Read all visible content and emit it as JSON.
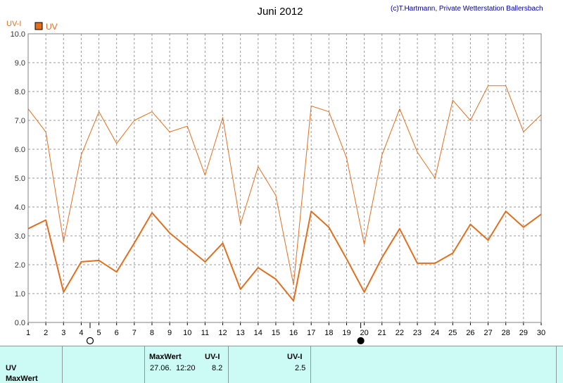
{
  "chart_data": {
    "type": "line",
    "title": "Juni 2012",
    "credit": "(c)T.Hartmann, Private Wetterstation Ballersbach",
    "ylabel": "UV-I",
    "legend": "UV",
    "legend_color": "#e07020",
    "ylim": [
      0,
      10
    ],
    "yticks": [
      "0.0",
      "1.0",
      "2.0",
      "3.0",
      "4.0",
      "5.0",
      "6.0",
      "7.0",
      "8.0",
      "9.0",
      "10.0"
    ],
    "xlim": [
      1,
      30
    ],
    "x": [
      1,
      2,
      3,
      4,
      5,
      6,
      7,
      8,
      9,
      10,
      11,
      12,
      13,
      14,
      15,
      16,
      17,
      18,
      19,
      20,
      21,
      22,
      23,
      24,
      25,
      26,
      27,
      28,
      29,
      30
    ],
    "grid": true,
    "series": [
      {
        "values": [
          7.4,
          6.6,
          2.8,
          5.8,
          7.3,
          6.2,
          7.0,
          7.3,
          6.6,
          6.8,
          5.1,
          7.1,
          3.4,
          5.4,
          4.4,
          1.3,
          7.5,
          7.3,
          5.7,
          2.7,
          5.8,
          7.4,
          5.9,
          5.0,
          7.7,
          7.0,
          8.2,
          8.2,
          6.6,
          7.2
        ]
      },
      {
        "values": [
          3.25,
          3.55,
          1.05,
          2.1,
          2.15,
          1.75,
          2.75,
          3.8,
          3.1,
          2.6,
          2.1,
          2.75,
          1.15,
          1.9,
          1.5,
          0.75,
          3.85,
          3.3,
          2.2,
          1.05,
          2.25,
          3.25,
          2.05,
          2.05,
          2.4,
          3.4,
          2.85,
          3.85,
          3.3,
          3.75
        ]
      }
    ],
    "moon_phases": [
      {
        "day": 4.5,
        "phase": "full"
      },
      {
        "day": 19.8,
        "phase": "new"
      }
    ]
  },
  "info": {
    "row_label": "UV",
    "row_label2": "MaxWert",
    "max_header": "MaxWert",
    "unit_header": "UV-I",
    "max_date": "27.06.",
    "max_time": "12:20",
    "max_value": "8.2",
    "avg_header": "UV-I",
    "avg_value": "2.5"
  }
}
